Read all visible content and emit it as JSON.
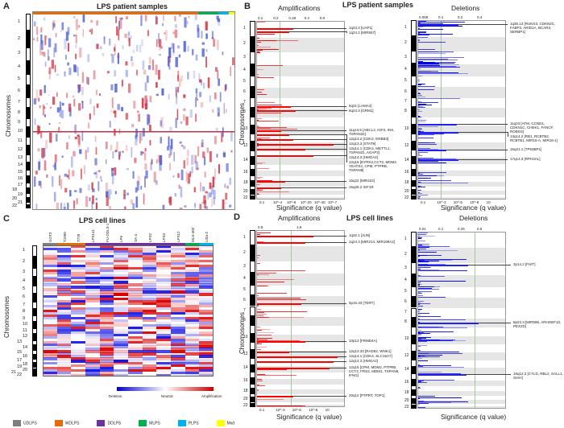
{
  "panel_labels": [
    "A",
    "B",
    "C",
    "D"
  ],
  "chart_data": [
    {
      "type": "heatmap",
      "id": "A",
      "title": "LPS patient samples",
      "ylabel": "Chromosomes",
      "row_labels": [
        "1",
        "2",
        "3",
        "4",
        "5",
        "6",
        "7",
        "8",
        "9",
        "10",
        "11",
        "12",
        "13",
        "14",
        "15",
        "16",
        "17",
        "18",
        "19",
        "20",
        "21",
        "22"
      ]
    },
    {
      "type": "bar",
      "id": "B-amp",
      "title": "Amplifications",
      "section_title": "LPS patient samples",
      "xlabel": "Significance (q value)",
      "top_ticks": [
        "0.1",
        "0.2",
        "0.28",
        "0.4",
        "0.8"
      ],
      "bottom_ticks": [
        "0.1",
        "10^-4",
        "10^-8",
        "10^-20",
        "10^-40",
        "10^-7"
      ],
      "peaks": [
        "1q23.3 [UAP1]",
        "1q24.2 [MIR557]",
        "6q21 [LAMA4]",
        "6q24.3 [GRM1]",
        "11q13.5 [ABCL2, IGF2, INS, TSPAN32]",
        "12q13.2 [CDK2, ERBB3]",
        "12q13.3 [STAT6]",
        "12q14.1 [CDK4, METTL1, TSPAN31, AGAP2]",
        "12q14.3 [HMGA2]",
        "12q15 [DYRK2,CCT2, MDM2, YEATS4, CPM, PTPRB, TSPAN8]",
        "15q22 [MIR422]",
        "15q26.2 IGF1R"
      ]
    },
    {
      "type": "bar",
      "id": "B-del",
      "title": "Deletions",
      "xlabel": "Significance (q value)",
      "top_ticks": [
        "0.068",
        "0.1",
        "0.2",
        "0.4"
      ],
      "bottom_ticks": [
        "0.1",
        "10^-3",
        "10^-5",
        "10^-8",
        "10"
      ],
      "peaks": [
        "1q36.13 [RUNX3, CDKN2C, FABP3, ARID1A, BCAR3, SERBP1]",
        "11q23 [ATM, CCND1, CDKN1C, CHEK1, FANCF, ROBO4]",
        "13q14.2 [RB1, RCBTB2, RCBTB1, MIR15-A, MIR16-1]",
        "15q21.1 [TP53BP1]",
        "17q13.3 [RPH3AL]"
      ]
    },
    {
      "type": "heatmap",
      "id": "C",
      "title": "LPS cell lines",
      "ylabel": "Chromosomes",
      "columns": [
        "GOT3",
        "T1000",
        "T778",
        "LPS141",
        "FU-DDLS-1",
        "LP6",
        "SA-4",
        "LPS2",
        "LPS3",
        "LPS12",
        "MLS-402",
        "LiSa-2"
      ],
      "scale": [
        "Deletion",
        "Neutral",
        "Amplification"
      ],
      "row_labels": [
        "1",
        "2",
        "3",
        "4",
        "5",
        "6",
        "7",
        "8",
        "9",
        "10",
        "11",
        "12",
        "13",
        "14",
        "15",
        "16",
        "17",
        "18",
        "19",
        "20",
        "21",
        "22"
      ]
    },
    {
      "type": "bar",
      "id": "D-amp",
      "title": "Amplifications",
      "section_title": "LPS cell lines",
      "xlabel": "Significance (q value)",
      "top_ticks": [
        "0.8",
        "1.6"
      ],
      "bottom_ticks": [
        "0.1",
        "10^-3",
        "10^-5",
        "10^-8",
        "10"
      ],
      "peaks": [
        "1q32.1 [JUN]",
        "1q24.3 [MIR214, MIR199A2]",
        "5p15.33 [TERT]",
        "10p13 [FRMD4A]",
        "12q13.33 [RAD52, WNK1]",
        "12q14.1 [CDK4, SLC16A7]",
        "12q14.3 [HMGA2]",
        "12q15 [CPM, MDM2, PTPRB, CCT2, FRS2, MDM1, TSPAN8, IFNG]",
        "20q12 [PTPRT, TOP1]"
      ]
    },
    {
      "type": "bar",
      "id": "D-del",
      "title": "Deletions",
      "xlabel": "Significance (q value)",
      "top_ticks": [
        "0.01",
        "0.1",
        "0.25",
        "0.5"
      ],
      "peaks": [
        "3p14.2 [FHIT]",
        "8p23.3 [MIR596, ARHGEF10, PEX2D]",
        "16q12.2 [CYLD, RBL2, SALL1, SIAH]"
      ]
    }
  ],
  "legend": [
    {
      "label": "UDLPS",
      "color": "#7f7f7f"
    },
    {
      "label": "WDLPS",
      "color": "#e46c0a"
    },
    {
      "label": "DDLPS",
      "color": "#7030a0"
    },
    {
      "label": "MLPS",
      "color": "#00b050"
    },
    {
      "label": "PLPS",
      "color": "#00b0f0"
    },
    {
      "label": "Mxd",
      "color": "#ffff00"
    }
  ]
}
